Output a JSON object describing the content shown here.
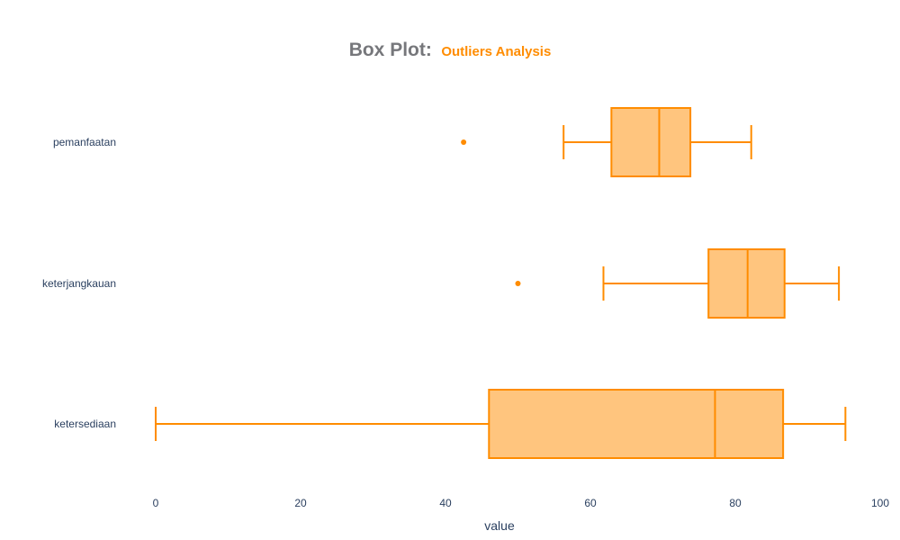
{
  "chart_data": {
    "type": "box",
    "orientation": "horizontal",
    "title": "Box Plot:",
    "subtitle": "Outliers Analysis",
    "xlabel": "value",
    "ylabel": "",
    "xlim": [
      0,
      100
    ],
    "xticks": [
      0,
      20,
      40,
      60,
      80,
      100
    ],
    "colors": {
      "line": "#ff8c00",
      "fill": "#ffc57e",
      "title": "#76777b",
      "subtitle": "#ff8c00",
      "text": "#2a3f5f"
    },
    "grid": false,
    "categories": [
      "pemanfaatan",
      "keterjangkauan",
      "ketersediaan"
    ],
    "boxes": [
      {
        "name": "pemanfaatan",
        "lower_whisker": 56.3,
        "q1": 62.9,
        "median": 69.5,
        "q3": 73.8,
        "upper_whisker": 82.2,
        "outliers": [
          42.5
        ]
      },
      {
        "name": "keterjangkauan",
        "lower_whisker": 61.8,
        "q1": 76.3,
        "median": 81.7,
        "q3": 86.8,
        "upper_whisker": 94.3,
        "outliers": [
          50.0
        ]
      },
      {
        "name": "ketersediaan",
        "lower_whisker": 0.0,
        "q1": 46.0,
        "median": 77.2,
        "q3": 86.6,
        "upper_whisker": 95.2,
        "outliers": []
      }
    ]
  }
}
